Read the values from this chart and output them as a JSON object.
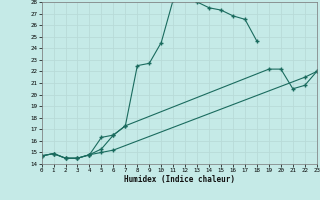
{
  "xlabel": "Humidex (Indice chaleur)",
  "xlim": [
    0,
    23
  ],
  "ylim": [
    14,
    28
  ],
  "xticks": [
    0,
    1,
    2,
    3,
    4,
    5,
    6,
    7,
    8,
    9,
    10,
    11,
    12,
    13,
    14,
    15,
    16,
    17,
    18,
    19,
    20,
    21,
    22,
    23
  ],
  "yticks": [
    14,
    15,
    16,
    17,
    18,
    19,
    20,
    21,
    22,
    23,
    24,
    25,
    26,
    27,
    28
  ],
  "bg_color": "#c5eae7",
  "line_color": "#1a6b5e",
  "grid_color": "#b8dbd8",
  "line1_x": [
    0,
    1,
    2,
    3,
    4,
    5,
    6,
    7,
    8,
    9,
    10,
    11,
    12,
    13,
    14,
    15,
    16,
    17,
    18
  ],
  "line1_y": [
    14.7,
    14.9,
    14.5,
    14.5,
    14.8,
    16.3,
    16.5,
    17.3,
    22.5,
    22.7,
    24.5,
    28.2,
    28.5,
    28.0,
    27.5,
    27.3,
    26.8,
    26.5,
    24.6
  ],
  "line2_x": [
    0,
    1,
    2,
    3,
    4,
    5,
    6,
    7,
    19,
    20,
    21,
    22,
    23
  ],
  "line2_y": [
    14.7,
    14.9,
    14.5,
    14.5,
    14.8,
    15.3,
    16.5,
    17.3,
    22.2,
    22.2,
    20.5,
    20.8,
    22.0
  ],
  "line3_x": [
    0,
    1,
    2,
    3,
    4,
    5,
    6,
    22,
    23
  ],
  "line3_y": [
    14.7,
    14.9,
    14.5,
    14.5,
    14.8,
    15.0,
    15.2,
    21.5,
    22.0
  ]
}
